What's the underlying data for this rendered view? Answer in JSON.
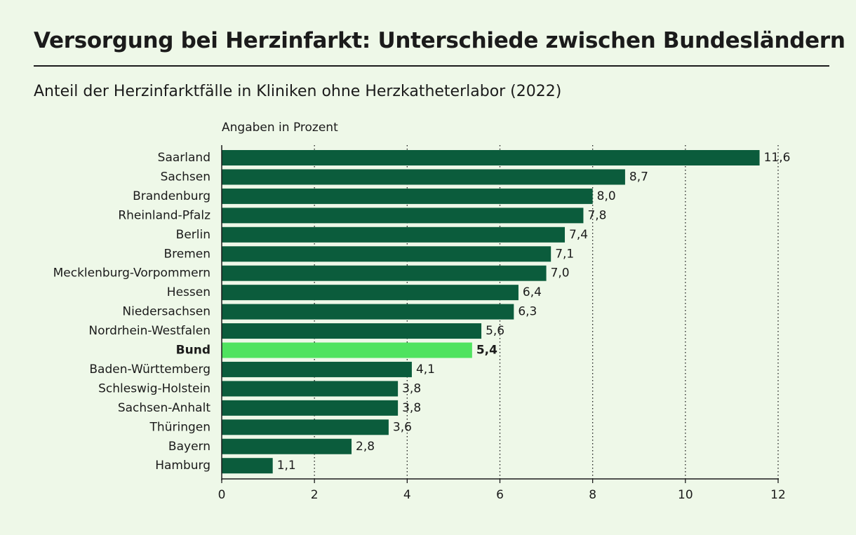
{
  "title": "Versorgung bei Herzinfarkt: Unterschiede zwischen Bundesländern",
  "subtitle": "Anteil der Herzinfarktfälle in Kliniken ohne Herzkatheterlabor (2022)",
  "unit_label": "Angaben in Prozent",
  "colors": {
    "bar": "#0b5c3c",
    "highlight": "#4fe35f",
    "background": "#eef8e8",
    "text": "#1b1b1b"
  },
  "chart_data": {
    "type": "bar",
    "orientation": "horizontal",
    "title": "Versorgung bei Herzinfarkt: Unterschiede zwischen Bundesländern",
    "subtitle": "Anteil der Herzinfarktfälle in Kliniken ohne Herzkatheterlabor (2022)",
    "xlabel": "Angaben in Prozent",
    "ylabel": "",
    "xlim": [
      0,
      12
    ],
    "xticks": [
      0,
      2,
      4,
      6,
      8,
      10,
      12
    ],
    "grid": "vertical dotted",
    "highlight": "Bund",
    "categories": [
      "Saarland",
      "Sachsen",
      "Brandenburg",
      "Rheinland-Pfalz",
      "Berlin",
      "Bremen",
      "Mecklenburg-Vorpommern",
      "Hessen",
      "Niedersachsen",
      "Nordrhein-Westfalen",
      "Bund",
      "Baden-Württemberg",
      "Schleswig-Holstein",
      "Sachsen-Anhalt",
      "Thüringen",
      "Bayern",
      "Hamburg"
    ],
    "values": [
      11.6,
      8.7,
      8.0,
      7.8,
      7.4,
      7.1,
      7.0,
      6.4,
      6.3,
      5.6,
      5.4,
      4.1,
      3.8,
      3.8,
      3.6,
      2.8,
      1.1
    ],
    "value_labels": [
      "11,6",
      "8,7",
      "8,0",
      "7,8",
      "7,4",
      "7,1",
      "7,0",
      "6,4",
      "6,3",
      "5,6",
      "5,4",
      "4,1",
      "3,8",
      "3,8",
      "3,6",
      "2,8",
      "1,1"
    ]
  }
}
